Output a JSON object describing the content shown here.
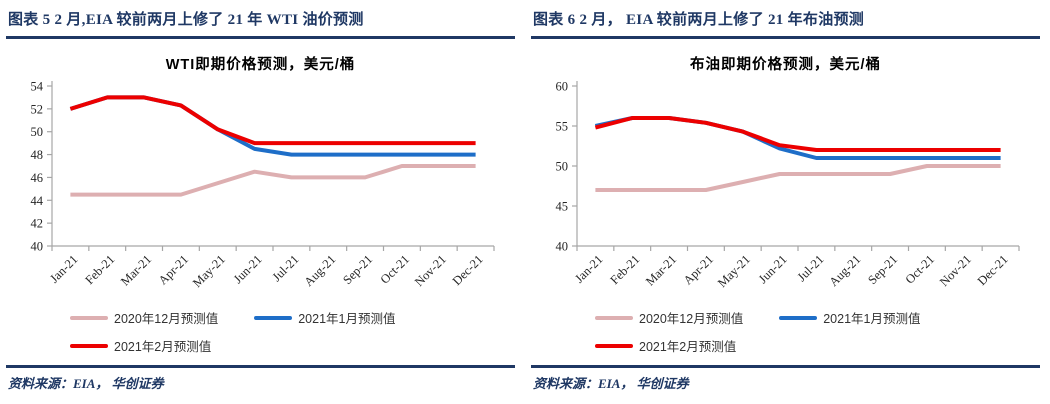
{
  "colors": {
    "header_navy": "#1F3864",
    "axis_gray": "#A6A6A6",
    "tick_text": "#262626",
    "legend_text": "#333333",
    "series_pink": "#DDAFB1",
    "series_blue": "#1E6EC8",
    "series_red": "#EC0000"
  },
  "figures": [
    {
      "header": "图表 5   2 月,EIA 较前两月上修了 21 年 WTI 油价预测",
      "source": "资料来源：EIA， 华创证券"
    },
    {
      "header": "图表 6   2 月， EIA 较前两月上修了 21 年布油预测",
      "source": "资料来源：EIA， 华创证券"
    }
  ],
  "chart_data": [
    {
      "type": "line",
      "title": "WTI即期价格预测，美元/桶",
      "categories": [
        "Jan-21",
        "Feb-21",
        "Mar-21",
        "Apr-21",
        "May-21",
        "Jun-21",
        "Jul-21",
        "Aug-21",
        "Sep-21",
        "Oct-21",
        "Nov-21",
        "Dec-21"
      ],
      "series": [
        {
          "name": "2020年12月预测值",
          "color": "#DDAFB1",
          "values": [
            44.5,
            44.5,
            44.5,
            44.5,
            45.5,
            46.5,
            46,
            46,
            46,
            47,
            47,
            47
          ]
        },
        {
          "name": "2021年1月预测值",
          "color": "#1E6EC8",
          "values": [
            52,
            53,
            53,
            52.3,
            50.2,
            48.5,
            48,
            48,
            48,
            48,
            48,
            48
          ]
        },
        {
          "name": "2021年2月预测值",
          "color": "#EC0000",
          "values": [
            52,
            53,
            53,
            52.3,
            50.2,
            49,
            49,
            49,
            49,
            49,
            49,
            49
          ]
        }
      ],
      "ylim": [
        40,
        54
      ],
      "ytick_step": 2,
      "grid": false,
      "legend_position": "bottom",
      "xlabel": "",
      "ylabel": ""
    },
    {
      "type": "line",
      "title": "布油即期价格预测，美元/桶",
      "categories": [
        "Jan-21",
        "Feb-21",
        "Mar-21",
        "Apr-21",
        "May-21",
        "Jun-21",
        "Jul-21",
        "Aug-21",
        "Sep-21",
        "Oct-21",
        "Nov-21",
        "Dec-21"
      ],
      "series": [
        {
          "name": "2020年12月预测值",
          "color": "#DDAFB1",
          "values": [
            47,
            47,
            47,
            47,
            48,
            49,
            49,
            49,
            49,
            50,
            50,
            50
          ]
        },
        {
          "name": "2021年1月预测值",
          "color": "#1E6EC8",
          "values": [
            55,
            56,
            56,
            55.4,
            54.3,
            52.2,
            51,
            51,
            51,
            51,
            51,
            51
          ]
        },
        {
          "name": "2021年2月预测值",
          "color": "#EC0000",
          "values": [
            54.8,
            56,
            56,
            55.4,
            54.3,
            52.6,
            52,
            52,
            52,
            52,
            52,
            52
          ]
        }
      ],
      "ylim": [
        40,
        60
      ],
      "ytick_step": 5,
      "grid": false,
      "legend_position": "bottom",
      "xlabel": "",
      "ylabel": ""
    }
  ]
}
